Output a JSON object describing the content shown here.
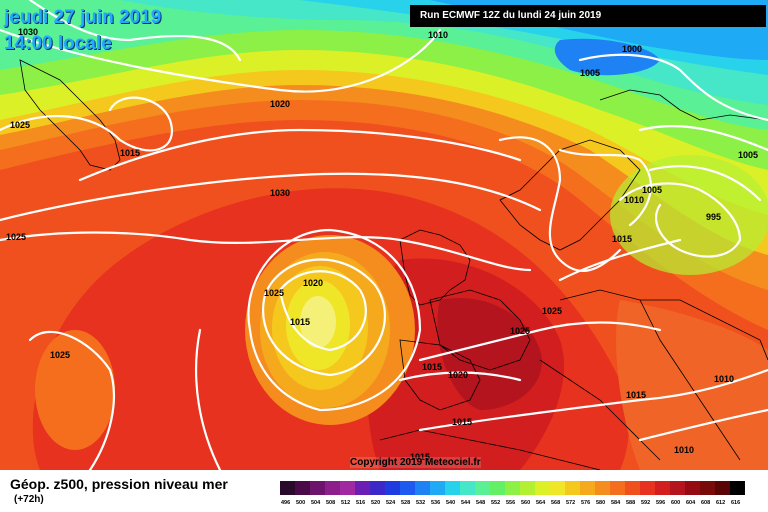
{
  "header": {
    "date": "jeudi 27 juin 2019",
    "time": "14:00 locale",
    "run": "Run ECMWF 12Z du lundi 24 juin 2019"
  },
  "footer": {
    "title": "Géop. z500, pression niveau mer",
    "subtitle": "(+72h)"
  },
  "copyright": "Copyright 2019 Meteociel.fr",
  "legend": {
    "values": [
      "496",
      "500",
      "504",
      "508",
      "512",
      "516",
      "520",
      "524",
      "528",
      "532",
      "536",
      "540",
      "544",
      "548",
      "552",
      "556",
      "560",
      "564",
      "568",
      "572",
      "576",
      "580",
      "584",
      "588",
      "592",
      "596",
      "600",
      "604",
      "608",
      "612",
      "616"
    ],
    "colors": [
      "#2a0a2a",
      "#4a0a4a",
      "#6c146c",
      "#8c1e8c",
      "#a028a0",
      "#6a1eb4",
      "#3c28c8",
      "#1e3ce0",
      "#1e5af0",
      "#1e82f5",
      "#1eaaf5",
      "#28d2eb",
      "#46e6c8",
      "#5af096",
      "#64f064",
      "#8cf046",
      "#b4f032",
      "#dcf028",
      "#f0e628",
      "#f5c81e",
      "#f5aa1e",
      "#f58c1e",
      "#f56e1e",
      "#f0501e",
      "#e6321e",
      "#d21e1e",
      "#b4141e",
      "#960a14",
      "#780a0a",
      "#5a0505",
      "#000000"
    ]
  },
  "isobar_labels": [
    {
      "text": "1030",
      "name": "isobar-label-1030-nw"
    },
    {
      "text": "1010",
      "name": "isobar-label-1010-top"
    },
    {
      "text": "1000",
      "name": "isobar-label-1000"
    },
    {
      "text": "1005",
      "name": "isobar-label-1005-north"
    },
    {
      "text": "1020",
      "name": "isobar-label-1020-north"
    },
    {
      "text": "1025",
      "name": "isobar-label-1025-west"
    },
    {
      "text": "1015",
      "name": "isobar-label-1015-greenland"
    },
    {
      "text": "1005",
      "name": "isobar-label-1005-east"
    },
    {
      "text": "1030",
      "name": "isobar-label-1030-center"
    },
    {
      "text": "1005",
      "name": "isobar-label-1005-scandinavia"
    },
    {
      "text": "1010",
      "name": "isobar-label-1010-scandinavia"
    },
    {
      "text": "995",
      "name": "isobar-label-995"
    },
    {
      "text": "1025",
      "name": "isobar-label-1025-far-west"
    },
    {
      "text": "1015",
      "name": "isobar-label-1015-baltic"
    },
    {
      "text": "1020",
      "name": "isobar-label-1020-azores"
    },
    {
      "text": "1025",
      "name": "isobar-label-1025-azores"
    },
    {
      "text": "1015",
      "name": "isobar-label-1015-azores"
    },
    {
      "text": "1025",
      "name": "isobar-label-1025-central-europe"
    },
    {
      "text": "1025",
      "name": "isobar-label-1025-france"
    },
    {
      "text": "1025",
      "name": "isobar-label-1025-southwest"
    },
    {
      "text": "1015",
      "name": "isobar-label-1015-iberia"
    },
    {
      "text": "1020",
      "name": "isobar-label-1020-iberia"
    },
    {
      "text": "1010",
      "name": "isobar-label-1010-balkans"
    },
    {
      "text": "1015",
      "name": "isobar-label-1015-italy"
    },
    {
      "text": "1015",
      "name": "isobar-label-1015-northafrica"
    },
    {
      "text": "1010",
      "name": "isobar-label-1010-mediterranean"
    },
    {
      "text": "1015",
      "name": "isobar-label-1015-south"
    }
  ]
}
